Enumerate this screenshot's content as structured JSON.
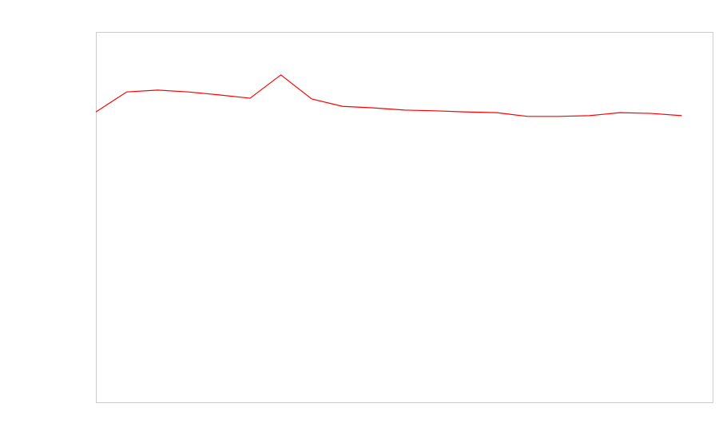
{
  "chart_data": {
    "type": "line",
    "x": [
      0,
      1,
      2,
      3,
      4,
      5,
      6,
      7,
      8,
      9,
      10,
      11,
      12,
      13,
      14,
      15,
      16,
      17,
      18,
      19
    ],
    "series": [
      {
        "color": "#ff0000",
        "values": [
          78.4,
          83.8,
          84.3,
          83.8,
          83.0,
          82.1,
          88.4,
          81.9,
          79.9,
          79.5,
          78.9,
          78.7,
          78.4,
          78.2,
          77.2,
          77.2,
          77.4,
          78.2,
          78.0,
          77.4
        ]
      }
    ],
    "xlim": [
      0,
      20
    ],
    "ylim": [
      0,
      100
    ]
  }
}
